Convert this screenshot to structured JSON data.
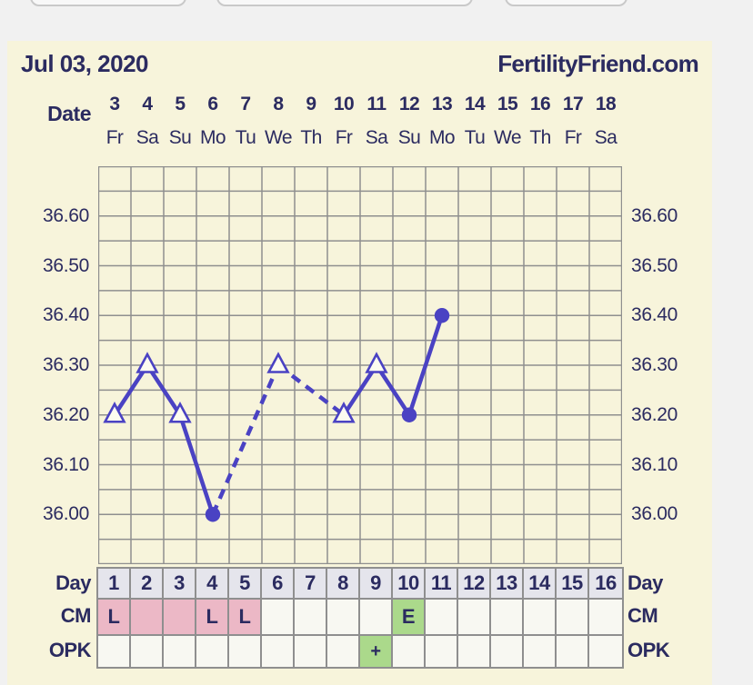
{
  "colors": {
    "page_bg": "#f1f1f1",
    "panel_bg": "#f7f4db",
    "text_navy": "#2b2b60",
    "grid_line": "#8f8f8f",
    "plot_line": "#4a42c3",
    "open_marker_fill": "#fdfcf0",
    "day_row_bg": "#e5e5ec",
    "cell_bg": "#f8f8f2",
    "cm_pink": "#ecb8c6",
    "positive_green": "#abd98b",
    "button_bg": "#f8f8f8",
    "button_border": "#c9c9c9"
  },
  "header": {
    "date": "Jul 03, 2020",
    "brand": "FertilityFriend.com"
  },
  "axes": {
    "date_label": "Date",
    "dates": [
      "3",
      "4",
      "5",
      "6",
      "7",
      "8",
      "9",
      "10",
      "11",
      "12",
      "13",
      "14",
      "15",
      "16",
      "17",
      "18"
    ],
    "weekdays": [
      "Fr",
      "Sa",
      "Su",
      "Mo",
      "Tu",
      "We",
      "Th",
      "Fr",
      "Sa",
      "Su",
      "Mo",
      "Tu",
      "We",
      "Th",
      "Fr",
      "Sa"
    ],
    "temp_ticks": [
      "36.60",
      "36.50",
      "36.40",
      "36.30",
      "36.20",
      "36.10",
      "36.00"
    ]
  },
  "chart_data": {
    "type": "line",
    "title": "Basal body temperature chart",
    "x_unit": "cycle_day",
    "y_unit": "temperature_celsius",
    "days_shown": 16,
    "ylim": [
      35.9,
      36.7
    ],
    "y_grid_step": 0.05,
    "y_labeled_step": 0.1,
    "grid": true,
    "points": [
      {
        "day": 1,
        "temp": 36.2,
        "marker": "open-triangle"
      },
      {
        "day": 2,
        "temp": 36.3,
        "marker": "open-triangle"
      },
      {
        "day": 3,
        "temp": 36.2,
        "marker": "open-triangle"
      },
      {
        "day": 4,
        "temp": 36.0,
        "marker": "filled-circle"
      },
      {
        "day": 6,
        "temp": 36.3,
        "marker": "open-triangle"
      },
      {
        "day": 8,
        "temp": 36.2,
        "marker": "open-triangle"
      },
      {
        "day": 9,
        "temp": 36.3,
        "marker": "open-triangle"
      },
      {
        "day": 10,
        "temp": 36.2,
        "marker": "filled-circle"
      },
      {
        "day": 11,
        "temp": 36.4,
        "marker": "filled-circle"
      }
    ],
    "segments": [
      {
        "from": 1,
        "to": 2,
        "style": "solid"
      },
      {
        "from": 2,
        "to": 3,
        "style": "solid"
      },
      {
        "from": 3,
        "to": 4,
        "style": "solid"
      },
      {
        "from": 4,
        "to": 6,
        "style": "dashed"
      },
      {
        "from": 6,
        "to": 8,
        "style": "dashed"
      },
      {
        "from": 8,
        "to": 9,
        "style": "solid"
      },
      {
        "from": 9,
        "to": 10,
        "style": "solid"
      },
      {
        "from": 10,
        "to": 11,
        "style": "solid"
      }
    ]
  },
  "table": {
    "day_label": "Day",
    "cm_label": "CM",
    "opk_label": "OPK",
    "days": [
      "1",
      "2",
      "3",
      "4",
      "5",
      "6",
      "7",
      "8",
      "9",
      "10",
      "11",
      "12",
      "13",
      "14",
      "15",
      "16"
    ],
    "cm_cells": [
      {
        "text": "L",
        "bg": "pink"
      },
      {
        "text": "",
        "bg": "pink"
      },
      {
        "text": "",
        "bg": "pink"
      },
      {
        "text": "L",
        "bg": "pink"
      },
      {
        "text": "L",
        "bg": "pink"
      },
      {
        "text": "",
        "bg": "plain"
      },
      {
        "text": "",
        "bg": "plain"
      },
      {
        "text": "",
        "bg": "plain"
      },
      {
        "text": "",
        "bg": "plain"
      },
      {
        "text": "E",
        "bg": "green"
      },
      {
        "text": "",
        "bg": "plain"
      },
      {
        "text": "",
        "bg": "plain"
      },
      {
        "text": "",
        "bg": "plain"
      },
      {
        "text": "",
        "bg": "plain"
      },
      {
        "text": "",
        "bg": "plain"
      },
      {
        "text": "",
        "bg": "plain"
      }
    ],
    "opk_cells": [
      {
        "text": "",
        "bg": "plain"
      },
      {
        "text": "",
        "bg": "plain"
      },
      {
        "text": "",
        "bg": "plain"
      },
      {
        "text": "",
        "bg": "plain"
      },
      {
        "text": "",
        "bg": "plain"
      },
      {
        "text": "",
        "bg": "plain"
      },
      {
        "text": "",
        "bg": "plain"
      },
      {
        "text": "",
        "bg": "plain"
      },
      {
        "text": "+",
        "bg": "green"
      },
      {
        "text": "",
        "bg": "plain"
      },
      {
        "text": "",
        "bg": "plain"
      },
      {
        "text": "",
        "bg": "plain"
      },
      {
        "text": "",
        "bg": "plain"
      },
      {
        "text": "",
        "bg": "plain"
      },
      {
        "text": "",
        "bg": "plain"
      },
      {
        "text": "",
        "bg": "plain"
      }
    ]
  }
}
